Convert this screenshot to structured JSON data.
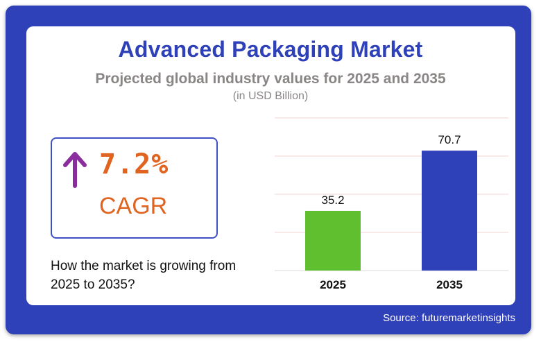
{
  "header": {
    "title": "Advanced Packaging Market",
    "subtitle": "Projected global industry values for 2025 and 2035",
    "unit": "(in USD Billion)"
  },
  "cagr": {
    "value": "7.2%",
    "label": "CAGR",
    "caption": "How the market is growing from 2025 to 2035?",
    "icon": "arrow-up-icon",
    "color": "#e0641f",
    "arrow_color": "#8a2e9e"
  },
  "footer": {
    "source": "Source: futuremarketinsights"
  },
  "colors": {
    "frame": "#2f41b9",
    "title": "#2f41b9",
    "bar_2025": "#5fbf2f",
    "bar_2035": "#2f41b9",
    "grid": "#f3d3d3"
  },
  "chart_data": {
    "type": "bar",
    "categories": [
      "2025",
      "2035"
    ],
    "values": [
      35.2,
      70.7
    ],
    "data_labels": [
      "35.2",
      "70.7"
    ],
    "colors": [
      "#5fbf2f",
      "#2f41b9"
    ],
    "ylim": [
      0,
      90
    ],
    "grid": true,
    "gridlines": [
      0,
      22.5,
      45,
      67.5,
      90
    ],
    "title": "",
    "xlabel": "",
    "ylabel": ""
  }
}
